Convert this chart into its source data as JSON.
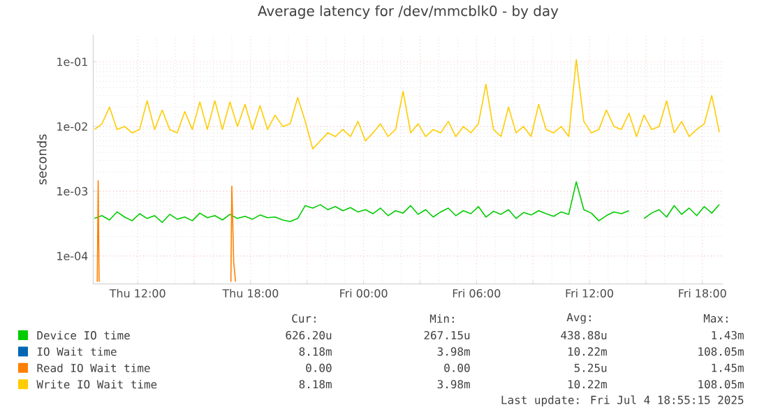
{
  "chart_data": {
    "type": "line",
    "title": "Average latency for /dev/mmcblk0 - by day",
    "ylabel": "seconds",
    "log": "y",
    "grid": true,
    "legend": "bottom",
    "xlim": [
      "2025-07-03T09:38",
      "2025-07-04T19:06"
    ],
    "ylim": [
      3.7e-05,
      0.26
    ],
    "xticks": [
      {
        "value": "2025-07-03T12:00",
        "label": "Thu 12:00"
      },
      {
        "value": "2025-07-03T15:00",
        "label": null
      },
      {
        "value": "2025-07-03T18:00",
        "label": "Thu 18:00"
      },
      {
        "value": "2025-07-03T21:00",
        "label": null
      },
      {
        "value": "2025-07-04T00:00",
        "label": "Fri 00:00"
      },
      {
        "value": "2025-07-04T03:00",
        "label": null
      },
      {
        "value": "2025-07-04T06:00",
        "label": "Fri 06:00"
      },
      {
        "value": "2025-07-04T09:00",
        "label": null
      },
      {
        "value": "2025-07-04T12:00",
        "label": "Fri 12:00"
      },
      {
        "value": "2025-07-04T15:00",
        "label": null
      },
      {
        "value": "2025-07-04T18:00",
        "label": "Fri 18:00"
      }
    ],
    "yticks": [
      {
        "value": 0.0001,
        "label": "1e-04"
      },
      {
        "value": 0.001,
        "label": "1e-03"
      },
      {
        "value": 0.01,
        "label": "1e-02"
      },
      {
        "value": 0.1,
        "label": "1e-01"
      }
    ],
    "x": [
      "2025-07-03T09:42",
      "2025-07-03T10:06",
      "2025-07-03T10:30",
      "2025-07-03T10:54",
      "2025-07-03T11:18",
      "2025-07-03T11:42",
      "2025-07-03T12:06",
      "2025-07-03T12:30",
      "2025-07-03T12:54",
      "2025-07-03T13:18",
      "2025-07-03T13:42",
      "2025-07-03T14:06",
      "2025-07-03T14:30",
      "2025-07-03T14:54",
      "2025-07-03T15:18",
      "2025-07-03T15:42",
      "2025-07-03T16:06",
      "2025-07-03T16:30",
      "2025-07-03T16:54",
      "2025-07-03T17:18",
      "2025-07-03T17:42",
      "2025-07-03T18:06",
      "2025-07-03T18:30",
      "2025-07-03T18:54",
      "2025-07-03T19:18",
      "2025-07-03T19:42",
      "2025-07-03T20:06",
      "2025-07-03T20:30",
      "2025-07-03T20:54",
      "2025-07-03T21:18",
      "2025-07-03T21:42",
      "2025-07-03T22:06",
      "2025-07-03T22:30",
      "2025-07-03T22:54",
      "2025-07-03T23:18",
      "2025-07-03T23:42",
      "2025-07-04T00:06",
      "2025-07-04T00:30",
      "2025-07-04T00:54",
      "2025-07-04T01:18",
      "2025-07-04T01:42",
      "2025-07-04T02:06",
      "2025-07-04T02:30",
      "2025-07-04T02:54",
      "2025-07-04T03:18",
      "2025-07-04T03:42",
      "2025-07-04T04:06",
      "2025-07-04T04:30",
      "2025-07-04T04:54",
      "2025-07-04T05:18",
      "2025-07-04T05:42",
      "2025-07-04T06:06",
      "2025-07-04T06:30",
      "2025-07-04T06:54",
      "2025-07-04T07:18",
      "2025-07-04T07:42",
      "2025-07-04T08:06",
      "2025-07-04T08:30",
      "2025-07-04T08:54",
      "2025-07-04T09:18",
      "2025-07-04T09:42",
      "2025-07-04T10:06",
      "2025-07-04T10:30",
      "2025-07-04T10:54",
      "2025-07-04T11:18",
      "2025-07-04T11:42",
      "2025-07-04T12:06",
      "2025-07-04T12:30",
      "2025-07-04T12:54",
      "2025-07-04T13:18",
      "2025-07-04T13:42",
      "2025-07-04T14:06",
      "2025-07-04T14:30",
      "2025-07-04T14:54",
      "2025-07-04T15:18",
      "2025-07-04T15:42",
      "2025-07-04T16:06",
      "2025-07-04T16:30",
      "2025-07-04T16:54",
      "2025-07-04T17:18",
      "2025-07-04T17:42",
      "2025-07-04T18:06",
      "2025-07-04T18:30",
      "2025-07-04T18:54"
    ],
    "series": [
      {
        "name": "Device IO time",
        "color": "#00cc00",
        "values": [
          0.00038,
          0.00042,
          0.00036,
          0.00048,
          0.0004,
          0.00035,
          0.00045,
          0.00038,
          0.00042,
          0.00033,
          0.00044,
          0.00037,
          0.0004,
          0.00035,
          0.00046,
          0.00039,
          0.00042,
          0.00036,
          0.00044,
          0.00038,
          0.00041,
          0.00037,
          0.00043,
          0.00039,
          0.0004,
          0.00036,
          0.00034,
          0.00038,
          0.0006,
          0.00055,
          0.00062,
          0.00052,
          0.00058,
          0.0005,
          0.00056,
          0.00048,
          0.00052,
          0.00045,
          0.00055,
          0.00042,
          0.0005,
          0.00046,
          0.0006,
          0.00044,
          0.00052,
          0.0004,
          0.00048,
          0.00055,
          0.00042,
          0.0005,
          0.00045,
          0.00058,
          0.0004,
          0.00049,
          0.00044,
          0.00052,
          0.00038,
          0.00047,
          0.00043,
          0.0005,
          0.00045,
          0.00041,
          0.00048,
          0.00044,
          0.0014,
          0.00052,
          0.00046,
          0.00035,
          0.00042,
          0.00048,
          0.00045,
          0.0005,
          null,
          0.00038,
          0.00046,
          0.00052,
          0.0004,
          0.0006,
          0.00044,
          0.00055,
          0.00042,
          0.00058,
          0.00046,
          0.000626
        ]
      },
      {
        "name": "IO Wait time",
        "color": "#0066b3",
        "values": [
          null,
          null,
          null,
          null,
          null,
          null,
          null,
          null,
          null,
          null,
          null,
          null,
          null,
          null,
          null,
          null,
          null,
          null,
          null,
          null,
          null,
          null,
          null,
          null,
          null,
          null,
          null,
          null,
          null,
          null,
          null,
          null,
          null,
          null,
          null,
          null,
          null,
          null,
          null,
          null,
          null,
          null,
          null,
          null,
          null,
          null,
          null,
          null,
          null,
          null,
          null,
          null,
          null,
          null,
          null,
          null,
          null,
          null,
          null,
          null,
          null,
          null,
          null,
          null,
          null,
          null,
          null,
          null,
          null,
          null,
          null,
          null,
          null,
          null,
          null,
          null,
          null,
          null,
          null,
          null,
          null,
          null,
          null,
          null
        ]
      },
      {
        "name": "Read IO Wait time",
        "color": "#ff8000",
        "x": [
          "2025-07-03T09:51",
          "2025-07-03T09:54",
          "2025-07-03T09:57",
          "2025-07-03T13:00",
          "2025-07-03T16:57",
          "2025-07-03T17:00",
          "2025-07-03T17:06",
          "2025-07-03T17:12"
        ],
        "values": [
          4e-05,
          0.00145,
          4e-05,
          null,
          4e-05,
          0.0012,
          8e-05,
          4e-05
        ]
      },
      {
        "name": "Write IO Wait time",
        "color": "#ffcc00",
        "values": [
          0.009,
          0.011,
          0.02,
          0.009,
          0.01,
          0.008,
          0.009,
          0.025,
          0.009,
          0.018,
          0.009,
          0.008,
          0.017,
          0.009,
          0.024,
          0.009,
          0.025,
          0.009,
          0.024,
          0.01,
          0.022,
          0.009,
          0.021,
          0.009,
          0.015,
          0.01,
          0.011,
          0.028,
          0.012,
          0.0045,
          0.006,
          0.008,
          0.007,
          0.009,
          0.007,
          0.012,
          0.006,
          0.008,
          0.011,
          0.007,
          0.009,
          0.035,
          0.008,
          0.011,
          0.007,
          0.009,
          0.008,
          0.012,
          0.007,
          0.01,
          0.008,
          0.011,
          0.045,
          0.009,
          0.007,
          0.02,
          0.008,
          0.01,
          0.007,
          0.022,
          0.009,
          0.008,
          0.01,
          0.007,
          0.108,
          0.012,
          0.008,
          0.009,
          0.018,
          0.01,
          0.009,
          0.016,
          0.007,
          0.015,
          0.009,
          0.01,
          0.025,
          0.008,
          0.012,
          0.007,
          0.009,
          0.011,
          0.03,
          0.00818
        ]
      }
    ],
    "annotations": [
      "Cur:",
      "Min:",
      "Avg:",
      "Max:",
      "626.20u",
      "267.15u",
      "438.88u",
      "1.43m",
      "8.18m",
      "3.98m",
      "10.22m",
      "108.05m",
      "0.00",
      "0.00",
      "5.25u",
      "1.45m",
      "8.18m",
      "3.98m",
      "10.22m",
      "108.05m",
      "Last update: Fri Jul  4 18:55:15 2025"
    ]
  }
}
